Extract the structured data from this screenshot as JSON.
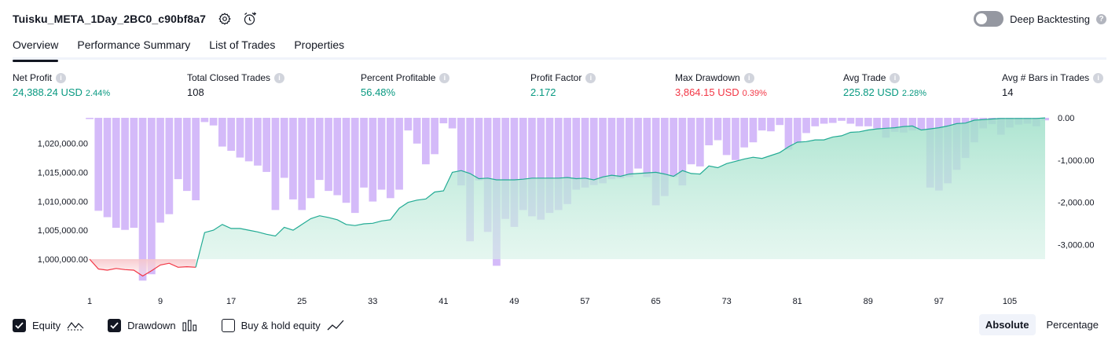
{
  "header": {
    "title": "Tuisku_META_1Day_2BC0_c90bf8a7",
    "deep_backtesting_label": "Deep Backtesting",
    "deep_backtesting_on": false,
    "help_glyph": "?"
  },
  "tabs": [
    {
      "label": "Overview",
      "active": true
    },
    {
      "label": "Performance Summary",
      "active": false
    },
    {
      "label": "List of Trades",
      "active": false
    },
    {
      "label": "Properties",
      "active": false
    }
  ],
  "metrics": {
    "net_profit": {
      "label": "Net Profit",
      "value": "24,388.24 USD",
      "pct": "2.44%"
    },
    "total_closed_trades": {
      "label": "Total Closed Trades",
      "value": "108"
    },
    "percent_profitable": {
      "label": "Percent Profitable",
      "value": "56.48%"
    },
    "profit_factor": {
      "label": "Profit Factor",
      "value": "2.172"
    },
    "max_drawdown": {
      "label": "Max Drawdown",
      "value": "3,864.15 USD",
      "pct": "0.39%"
    },
    "avg_trade": {
      "label": "Avg Trade",
      "value": "225.82 USD",
      "pct": "2.28%"
    },
    "avg_bars": {
      "label": "Avg # Bars in Trades",
      "value": "14"
    }
  },
  "legend": {
    "equity_label": "Equity",
    "equity_checked": true,
    "drawdown_label": "Drawdown",
    "drawdown_checked": true,
    "buy_hold_label": "Buy & hold equity",
    "buy_hold_checked": false
  },
  "mode": {
    "absolute_label": "Absolute",
    "percentage_label": "Percentage",
    "selected": "Absolute"
  },
  "colors": {
    "profit_green": "#089981",
    "loss_red": "#f23645",
    "drawdown_bar": "#c9a8f7",
    "equity_fill": "#b9e6d7"
  },
  "chart_data": {
    "type": "area",
    "x_ticks": [
      1,
      9,
      17,
      25,
      33,
      41,
      49,
      57,
      65,
      73,
      81,
      89,
      97,
      105
    ],
    "y_left_ticks": [
      "1,000,000.00",
      "1,005,000.00",
      "1,010,000.00",
      "1,015,000.00",
      "1,020,000.00"
    ],
    "y_left_values": [
      1000000,
      1005000,
      1010000,
      1015000,
      1020000
    ],
    "ylim_left": [
      997500,
      1022500
    ],
    "y_right_ticks": [
      "0.00",
      "-1,000.00",
      "-2,000.00",
      "-3,000.00"
    ],
    "y_right_values": [
      0,
      -1000,
      -2000,
      -3000
    ],
    "ylim_right": [
      -3900,
      0
    ],
    "series": [
      {
        "name": "Equity",
        "x": [
          1,
          2,
          3,
          4,
          5,
          6,
          7,
          8,
          9,
          10,
          11,
          12,
          13,
          14,
          15,
          16,
          17,
          18,
          19,
          20,
          21,
          22,
          23,
          24,
          25,
          26,
          27,
          28,
          29,
          30,
          31,
          32,
          33,
          34,
          35,
          36,
          37,
          38,
          39,
          40,
          41,
          42,
          43,
          44,
          45,
          46,
          47,
          48,
          49,
          50,
          51,
          52,
          53,
          54,
          55,
          56,
          57,
          58,
          59,
          60,
          61,
          62,
          63,
          64,
          65,
          66,
          67,
          68,
          69,
          70,
          71,
          72,
          73,
          74,
          75,
          76,
          77,
          78,
          79,
          80,
          81,
          82,
          83,
          84,
          85,
          86,
          87,
          88,
          89,
          90,
          91,
          92,
          93,
          94,
          95,
          96,
          97,
          98,
          99,
          100,
          101,
          102,
          103,
          104,
          105,
          106,
          107,
          108,
          109
        ],
        "values": [
          1000000,
          998300,
          998100,
          998400,
          998200,
          998100,
          997100,
          998000,
          999000,
          999300,
          998600,
          998700,
          998600,
          1004600,
          1005000,
          1006000,
          1005300,
          1005300,
          1005000,
          1004700,
          1004300,
          1004000,
          1005500,
          1005000,
          1006000,
          1007000,
          1007500,
          1007200,
          1006800,
          1006000,
          1005800,
          1006100,
          1006200,
          1006600,
          1006800,
          1008800,
          1009800,
          1010200,
          1010400,
          1011600,
          1011800,
          1015000,
          1015300,
          1014800,
          1013900,
          1014000,
          1013700,
          1013700,
          1013700,
          1013800,
          1014000,
          1014000,
          1014000,
          1014000,
          1014100,
          1013900,
          1014000,
          1013700,
          1014200,
          1014500,
          1014300,
          1014700,
          1014800,
          1014900,
          1015000,
          1014700,
          1014300,
          1015300,
          1014800,
          1014700,
          1016100,
          1015800,
          1016500,
          1016900,
          1017300,
          1017600,
          1017400,
          1017900,
          1018400,
          1019400,
          1020200,
          1020300,
          1020600,
          1020600,
          1021100,
          1021300,
          1021900,
          1022000,
          1022300,
          1022500,
          1022600,
          1022700,
          1022900,
          1023000,
          1022300,
          1022500,
          1022700,
          1023000,
          1023400,
          1023500,
          1024000,
          1024100,
          1024200,
          1024300,
          1024300,
          1024300,
          1024300,
          1024300,
          1024388
        ]
      },
      {
        "name": "Drawdown",
        "values": [
          -30,
          -2200,
          -2350,
          -2600,
          -2650,
          -2600,
          -3850,
          -3700,
          -2480,
          -2280,
          -1450,
          -1730,
          -1950,
          -100,
          -180,
          -680,
          -780,
          -940,
          -1030,
          -1130,
          -1280,
          -2180,
          -1420,
          -1930,
          -2180,
          -1900,
          -1470,
          -1730,
          -1830,
          -2010,
          -2250,
          -1650,
          -1980,
          -1700,
          -1900,
          -1700,
          -300,
          -610,
          -1100,
          -860,
          -130,
          -250,
          -1600,
          -2920,
          -1480,
          -2700,
          -3500,
          -2390,
          -2580,
          -2180,
          -2330,
          -2410,
          -2250,
          -2180,
          -2040,
          -1700,
          -1650,
          -1590,
          -1550,
          -1450,
          -1430,
          -1400,
          -1200,
          -1400,
          -2070,
          -1850,
          -1400,
          -1600,
          -1100,
          -1150,
          -650,
          -530,
          -880,
          -1000,
          -700,
          -580,
          -300,
          -320,
          -170,
          -750,
          -600,
          -360,
          -200,
          -140,
          -120,
          -70,
          -140,
          -200,
          -200,
          -250,
          -470,
          -330,
          -350,
          -300,
          -300,
          -1650,
          -1720,
          -1550,
          -1230,
          -950,
          -580,
          -250,
          -150,
          -400,
          -230,
          -160,
          -140,
          -200,
          -60
        ]
      }
    ],
    "grid": false,
    "legend_placement": "bottom-left"
  }
}
